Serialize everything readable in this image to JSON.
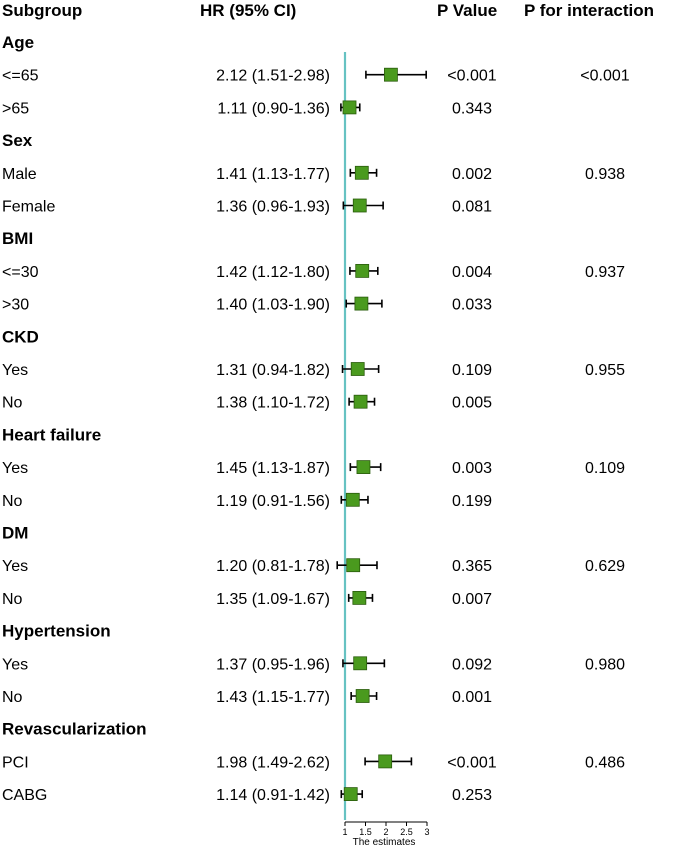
{
  "headers": {
    "subgroup": "Subgroup",
    "hr": "HR (95% CI)",
    "p_value": "P Value",
    "p_interaction": "P for interaction"
  },
  "chart_data": {
    "type": "forest",
    "xlabel": "The estimates",
    "xlim": [
      1,
      3
    ],
    "xticks": [
      1,
      1.5,
      2,
      2.5,
      3
    ],
    "xtick_labels": [
      "1",
      "1.5",
      "2",
      "2.5",
      "3"
    ],
    "reference_line": 1,
    "colors": {
      "marker": "#4a9a1e",
      "marker_edge": "#2a5c0c",
      "reference_line": "#66c2c2",
      "whisker": "#000000"
    },
    "groups": [
      {
        "name": "Age",
        "p_interaction": "<0.001",
        "rows": [
          {
            "label": "<=65",
            "hr_text": "2.12 (1.51-2.98)",
            "hr": 2.12,
            "lo": 1.51,
            "hi": 2.98,
            "p": "<0.001"
          },
          {
            "label": ">65",
            "hr_text": "1.11 (0.90-1.36)",
            "hr": 1.11,
            "lo": 0.9,
            "hi": 1.36,
            "p": "0.343"
          }
        ]
      },
      {
        "name": "Sex",
        "p_interaction": "0.938",
        "rows": [
          {
            "label": "Male",
            "hr_text": "1.41 (1.13-1.77)",
            "hr": 1.41,
            "lo": 1.13,
            "hi": 1.77,
            "p": "0.002"
          },
          {
            "label": "Female",
            "hr_text": "1.36 (0.96-1.93)",
            "hr": 1.36,
            "lo": 0.96,
            "hi": 1.93,
            "p": "0.081"
          }
        ]
      },
      {
        "name": "BMI",
        "p_interaction": "0.937",
        "rows": [
          {
            "label": "<=30",
            "hr_text": "1.42 (1.12-1.80)",
            "hr": 1.42,
            "lo": 1.12,
            "hi": 1.8,
            "p": "0.004"
          },
          {
            "label": ">30",
            "hr_text": "1.40 (1.03-1.90)",
            "hr": 1.4,
            "lo": 1.03,
            "hi": 1.9,
            "p": "0.033"
          }
        ]
      },
      {
        "name": "CKD",
        "p_interaction": "0.955",
        "rows": [
          {
            "label": "Yes",
            "hr_text": "1.31 (0.94-1.82)",
            "hr": 1.31,
            "lo": 0.94,
            "hi": 1.82,
            "p": "0.109"
          },
          {
            "label": "No",
            "hr_text": "1.38 (1.10-1.72)",
            "hr": 1.38,
            "lo": 1.1,
            "hi": 1.72,
            "p": "0.005"
          }
        ]
      },
      {
        "name": "Heart failure",
        "p_interaction": "0.109",
        "rows": [
          {
            "label": "Yes",
            "hr_text": "1.45 (1.13-1.87)",
            "hr": 1.45,
            "lo": 1.13,
            "hi": 1.87,
            "p": "0.003"
          },
          {
            "label": "No",
            "hr_text": "1.19 (0.91-1.56)",
            "hr": 1.19,
            "lo": 0.91,
            "hi": 1.56,
            "p": "0.199"
          }
        ]
      },
      {
        "name": "DM",
        "p_interaction": "0.629",
        "rows": [
          {
            "label": "Yes",
            "hr_text": "1.20 (0.81-1.78)",
            "hr": 1.2,
            "lo": 0.81,
            "hi": 1.78,
            "p": "0.365"
          },
          {
            "label": "No",
            "hr_text": "1.35 (1.09-1.67)",
            "hr": 1.35,
            "lo": 1.09,
            "hi": 1.67,
            "p": "0.007"
          }
        ]
      },
      {
        "name": "Hypertension",
        "p_interaction": "0.980",
        "rows": [
          {
            "label": "Yes",
            "hr_text": "1.37 (0.95-1.96)",
            "hr": 1.37,
            "lo": 0.95,
            "hi": 1.96,
            "p": "0.092"
          },
          {
            "label": "No",
            "hr_text": "1.43 (1.15-1.77)",
            "hr": 1.43,
            "lo": 1.15,
            "hi": 1.77,
            "p": "0.001"
          }
        ]
      },
      {
        "name": "Revascularization",
        "p_interaction": "0.486",
        "rows": [
          {
            "label": "PCI",
            "hr_text": "1.98 (1.49-2.62)",
            "hr": 1.98,
            "lo": 1.49,
            "hi": 2.62,
            "p": "<0.001"
          },
          {
            "label": "CABG",
            "hr_text": "1.14 (0.91-1.42)",
            "hr": 1.14,
            "lo": 0.91,
            "hi": 1.42,
            "p": "0.253"
          }
        ]
      }
    ]
  }
}
